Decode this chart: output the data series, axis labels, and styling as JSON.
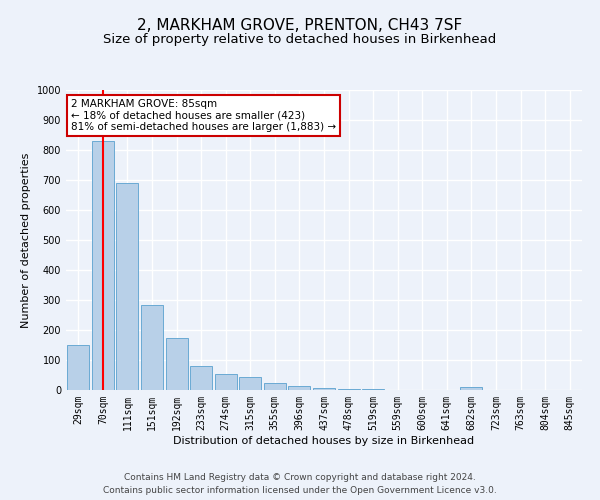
{
  "title": "2, MARKHAM GROVE, PRENTON, CH43 7SF",
  "subtitle": "Size of property relative to detached houses in Birkenhead",
  "xlabel": "Distribution of detached houses by size in Birkenhead",
  "ylabel": "Number of detached properties",
  "categories": [
    "29sqm",
    "70sqm",
    "111sqm",
    "151sqm",
    "192sqm",
    "233sqm",
    "274sqm",
    "315sqm",
    "355sqm",
    "396sqm",
    "437sqm",
    "478sqm",
    "519sqm",
    "559sqm",
    "600sqm",
    "641sqm",
    "682sqm",
    "723sqm",
    "763sqm",
    "804sqm",
    "845sqm"
  ],
  "values": [
    150,
    830,
    690,
    285,
    172,
    80,
    55,
    42,
    22,
    12,
    8,
    5,
    2,
    0,
    0,
    0,
    10,
    0,
    0,
    0,
    0
  ],
  "bar_color": "#b8d0e8",
  "bar_edge_color": "#6aaad4",
  "red_line_x": 1,
  "annotation_text": "2 MARKHAM GROVE: 85sqm\n← 18% of detached houses are smaller (423)\n81% of semi-detached houses are larger (1,883) →",
  "annotation_box_color": "#ffffff",
  "annotation_box_edge": "#cc0000",
  "ylim": [
    0,
    1000
  ],
  "yticks": [
    0,
    100,
    200,
    300,
    400,
    500,
    600,
    700,
    800,
    900,
    1000
  ],
  "footer1": "Contains HM Land Registry data © Crown copyright and database right 2024.",
  "footer2": "Contains public sector information licensed under the Open Government Licence v3.0.",
  "bg_color": "#edf2fa",
  "plot_bg_color": "#edf2fa",
  "grid_color": "#ffffff",
  "title_fontsize": 11,
  "subtitle_fontsize": 9.5,
  "axis_label_fontsize": 8,
  "tick_fontsize": 7,
  "footer_fontsize": 6.5,
  "annotation_fontsize": 7.5
}
